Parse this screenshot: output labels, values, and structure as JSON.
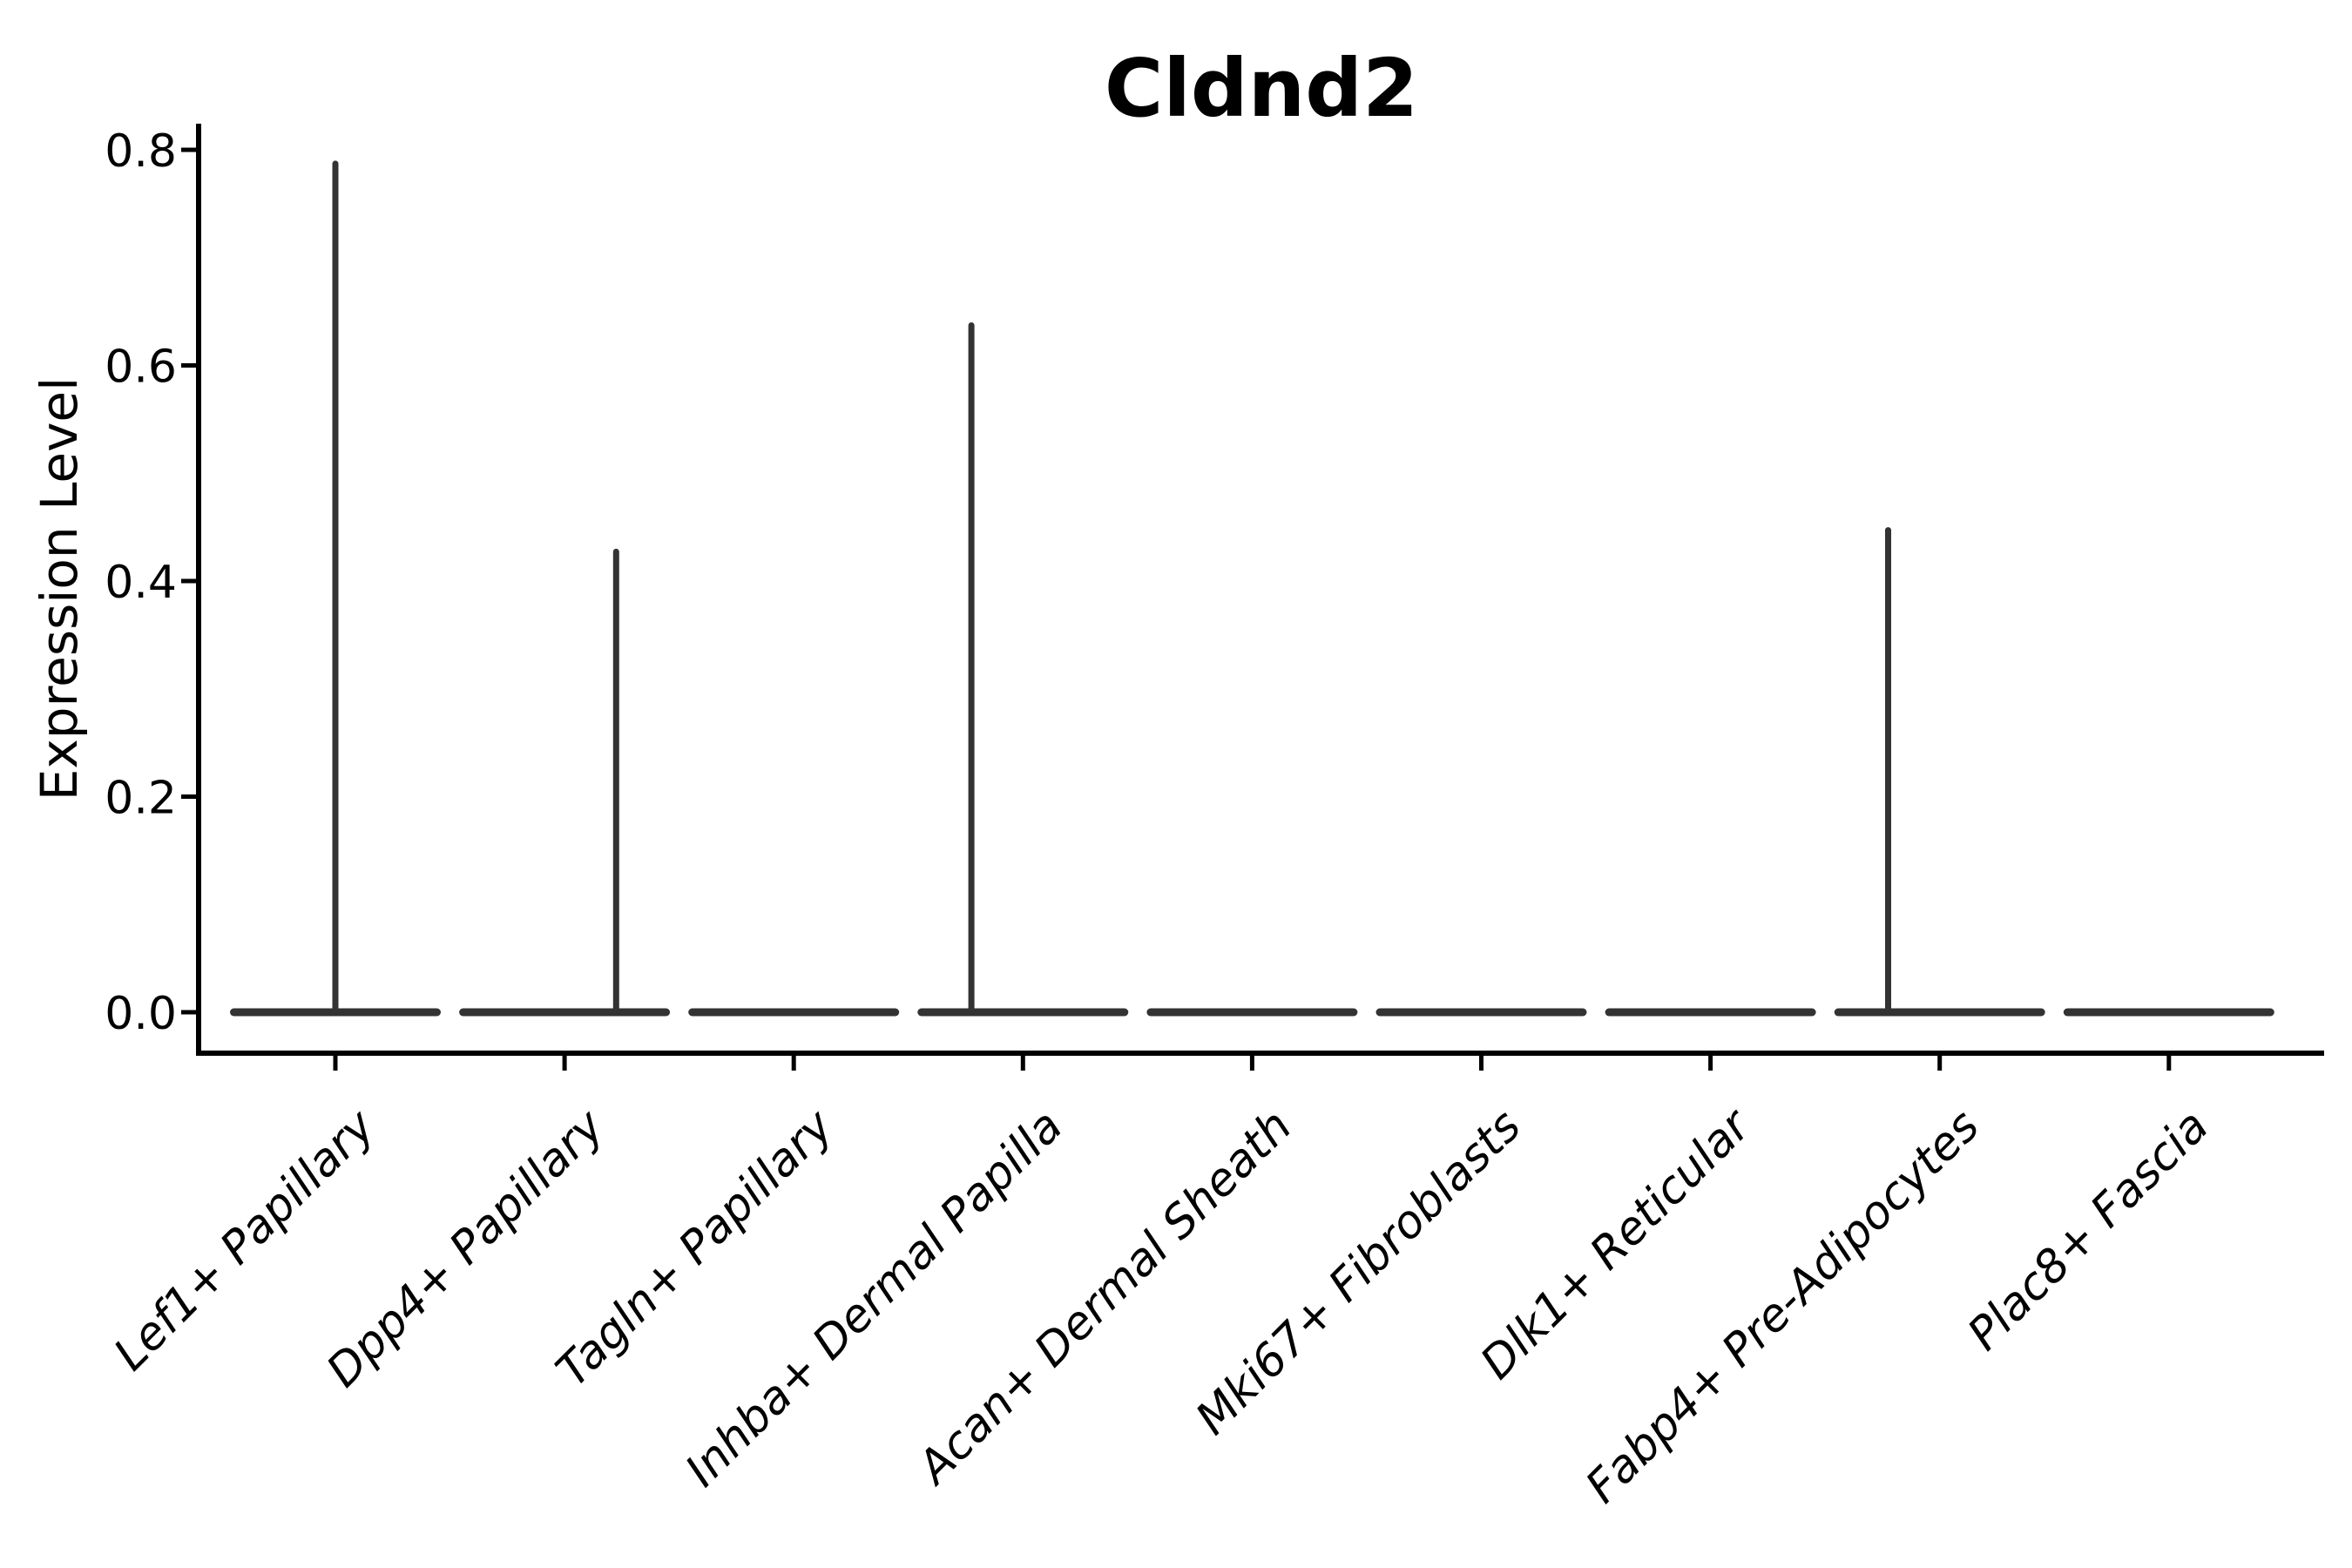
{
  "chart_data": {
    "type": "violin",
    "title": "Cldnd2",
    "xlabel": "",
    "ylabel": "Expression Level",
    "ylim": [
      0,
      0.82
    ],
    "yticks": [
      0.0,
      0.2,
      0.4,
      0.6,
      0.8
    ],
    "grid": false,
    "legend": "none",
    "violin_color": "#333333",
    "axis_color": "#000000",
    "categories": [
      "Lef1+ Papillary",
      "Dpp4+ Papillary",
      "Tagln+ Papillary",
      "Inhba+ Dermal Papilla",
      "Acan+ Dermal Sheath",
      "Mki67+ Fibroblasts",
      "Dlk1+ Reticular",
      "Fabp4+ Pre-Adipocytes",
      "Plac8+ Fascia"
    ],
    "series": [
      {
        "name": "Lef1+ Papillary",
        "median": 0.0,
        "max_expression": 0.79,
        "spike_offset": 0.0
      },
      {
        "name": "Dpp4+ Papillary",
        "median": 0.0,
        "max_expression": 0.43,
        "spike_offset": 0.225
      },
      {
        "name": "Tagln+ Papillary",
        "median": 0.0,
        "max_expression": 0.0,
        "spike_offset": 0.0
      },
      {
        "name": "Inhba+ Dermal Papilla",
        "median": 0.0,
        "max_expression": 0.64,
        "spike_offset": -0.225
      },
      {
        "name": "Acan+ Dermal Sheath",
        "median": 0.0,
        "max_expression": 0.0,
        "spike_offset": 0.0
      },
      {
        "name": "Mki67+ Fibroblasts",
        "median": 0.0,
        "max_expression": 0.0,
        "spike_offset": 0.0
      },
      {
        "name": "Dlk1+ Reticular",
        "median": 0.0,
        "max_expression": 0.0,
        "spike_offset": 0.0
      },
      {
        "name": "Fabp4+ Pre-Adipocytes",
        "median": 0.0,
        "max_expression": 0.45,
        "spike_offset": -0.225
      },
      {
        "name": "Plac8+ Fascia",
        "median": 0.0,
        "max_expression": 0.0,
        "spike_offset": 0.0
      }
    ]
  }
}
